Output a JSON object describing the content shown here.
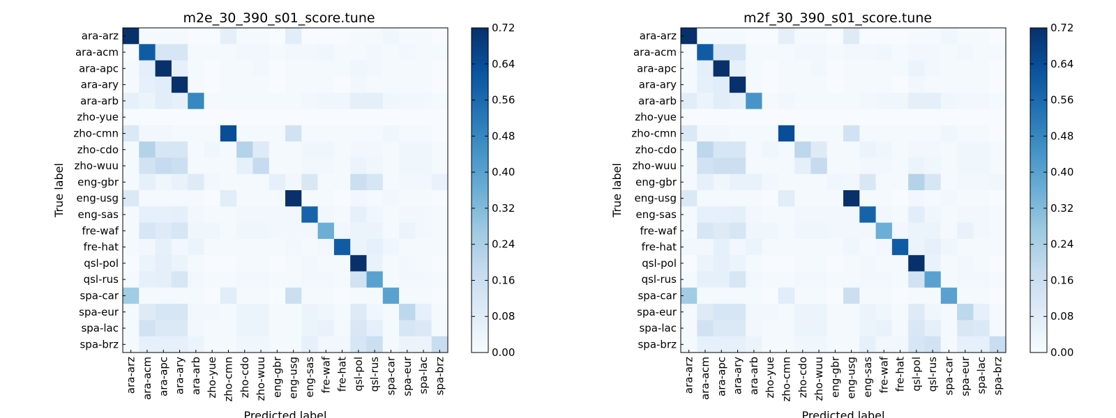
{
  "chart_data": [
    {
      "type": "heatmap",
      "title": "m2e_30_390_s01_score.tune",
      "xlabel": "Predicted label",
      "ylabel": "True label",
      "colormap": "Blues",
      "vmin": 0.0,
      "vmax": 0.72,
      "colorbar_ticks": [
        "0.00",
        "0.08",
        "0.16",
        "0.24",
        "0.32",
        "0.40",
        "0.48",
        "0.56",
        "0.64",
        "0.72"
      ],
      "labels": [
        "ara-arz",
        "ara-acm",
        "ara-apc",
        "ara-ary",
        "ara-arb",
        "zho-yue",
        "zho-cmn",
        "zho-cdo",
        "zho-wuu",
        "eng-gbr",
        "eng-usg",
        "eng-sas",
        "fre-waf",
        "fre-hat",
        "qsl-pol",
        "qsl-rus",
        "spa-car",
        "spa-eur",
        "spa-lac",
        "spa-brz"
      ],
      "matrix": [
        [
          0.74,
          0.01,
          0.01,
          0.01,
          0.0,
          0.0,
          0.07,
          0.01,
          0.01,
          0.0,
          0.08,
          0.0,
          0.0,
          0.0,
          0.01,
          0.01,
          0.03,
          0.01,
          0.01,
          0.0
        ],
        [
          0.0,
          0.6,
          0.12,
          0.12,
          0.01,
          0.01,
          0.01,
          0.02,
          0.02,
          0.01,
          0.02,
          0.02,
          0.03,
          0.01,
          0.01,
          0.02,
          0.01,
          0.02,
          0.01,
          0.01
        ],
        [
          0.01,
          0.07,
          0.72,
          0.06,
          0.01,
          0.0,
          0.01,
          0.01,
          0.02,
          0.0,
          0.01,
          0.01,
          0.01,
          0.01,
          0.03,
          0.02,
          0.01,
          0.01,
          0.01,
          0.0
        ],
        [
          0.01,
          0.06,
          0.08,
          0.74,
          0.01,
          0.0,
          0.01,
          0.01,
          0.01,
          0.0,
          0.01,
          0.01,
          0.01,
          0.0,
          0.02,
          0.01,
          0.01,
          0.01,
          0.01,
          0.0
        ],
        [
          0.06,
          0.04,
          0.08,
          0.06,
          0.48,
          0.01,
          0.01,
          0.01,
          0.01,
          0.01,
          0.01,
          0.02,
          0.03,
          0.03,
          0.07,
          0.07,
          0.03,
          0.02,
          0.02,
          0.01
        ],
        [
          0.0,
          0.0,
          0.0,
          0.0,
          0.0,
          0.0,
          0.0,
          0.0,
          0.0,
          0.0,
          0.0,
          0.0,
          0.0,
          0.0,
          0.0,
          0.0,
          0.0,
          0.0,
          0.0,
          0.0
        ],
        [
          0.1,
          0.02,
          0.02,
          0.01,
          0.01,
          0.01,
          0.64,
          0.01,
          0.01,
          0.01,
          0.14,
          0.01,
          0.01,
          0.01,
          0.01,
          0.01,
          0.03,
          0.01,
          0.01,
          0.0
        ],
        [
          0.01,
          0.22,
          0.12,
          0.12,
          0.01,
          0.03,
          0.01,
          0.22,
          0.09,
          0.01,
          0.01,
          0.03,
          0.03,
          0.01,
          0.02,
          0.02,
          0.01,
          0.03,
          0.03,
          0.01
        ],
        [
          0.01,
          0.14,
          0.18,
          0.16,
          0.01,
          0.01,
          0.01,
          0.06,
          0.18,
          0.01,
          0.01,
          0.02,
          0.02,
          0.01,
          0.04,
          0.03,
          0.01,
          0.03,
          0.03,
          0.01
        ],
        [
          0.01,
          0.06,
          0.03,
          0.05,
          0.09,
          0.02,
          0.01,
          0.01,
          0.01,
          0.06,
          0.02,
          0.11,
          0.01,
          0.01,
          0.16,
          0.12,
          0.01,
          0.02,
          0.02,
          0.05
        ],
        [
          0.1,
          0.01,
          0.01,
          0.01,
          0.01,
          0.0,
          0.08,
          0.01,
          0.01,
          0.01,
          0.76,
          0.01,
          0.01,
          0.0,
          0.02,
          0.01,
          0.02,
          0.01,
          0.01,
          0.0
        ],
        [
          0.01,
          0.06,
          0.06,
          0.07,
          0.02,
          0.01,
          0.01,
          0.02,
          0.02,
          0.02,
          0.02,
          0.58,
          0.02,
          0.01,
          0.06,
          0.03,
          0.01,
          0.02,
          0.02,
          0.01
        ],
        [
          0.01,
          0.12,
          0.09,
          0.12,
          0.03,
          0.03,
          0.01,
          0.03,
          0.03,
          0.02,
          0.02,
          0.02,
          0.36,
          0.02,
          0.04,
          0.04,
          0.01,
          0.04,
          0.02,
          0.01
        ],
        [
          0.01,
          0.02,
          0.06,
          0.02,
          0.04,
          0.01,
          0.01,
          0.01,
          0.01,
          0.01,
          0.02,
          0.01,
          0.02,
          0.6,
          0.04,
          0.06,
          0.03,
          0.01,
          0.01,
          0.01
        ],
        [
          0.0,
          0.04,
          0.07,
          0.04,
          0.01,
          0.0,
          0.0,
          0.01,
          0.01,
          0.0,
          0.01,
          0.02,
          0.01,
          0.01,
          0.74,
          0.05,
          0.01,
          0.02,
          0.01,
          0.0
        ],
        [
          0.01,
          0.06,
          0.07,
          0.12,
          0.02,
          0.01,
          0.01,
          0.02,
          0.02,
          0.01,
          0.01,
          0.02,
          0.02,
          0.01,
          0.14,
          0.4,
          0.01,
          0.02,
          0.02,
          0.01
        ],
        [
          0.26,
          0.01,
          0.01,
          0.01,
          0.01,
          0.0,
          0.08,
          0.01,
          0.01,
          0.0,
          0.16,
          0.01,
          0.01,
          0.0,
          0.01,
          0.01,
          0.4,
          0.01,
          0.01,
          0.0
        ],
        [
          0.01,
          0.09,
          0.12,
          0.12,
          0.02,
          0.02,
          0.01,
          0.04,
          0.04,
          0.01,
          0.01,
          0.04,
          0.03,
          0.01,
          0.09,
          0.03,
          0.01,
          0.2,
          0.06,
          0.01
        ],
        [
          0.01,
          0.14,
          0.1,
          0.1,
          0.02,
          0.01,
          0.01,
          0.04,
          0.04,
          0.01,
          0.01,
          0.04,
          0.05,
          0.01,
          0.11,
          0.07,
          0.01,
          0.12,
          0.1,
          0.01
        ],
        [
          0.01,
          0.06,
          0.06,
          0.06,
          0.04,
          0.01,
          0.01,
          0.03,
          0.03,
          0.01,
          0.01,
          0.06,
          0.02,
          0.02,
          0.12,
          0.16,
          0.01,
          0.04,
          0.04,
          0.17
        ]
      ]
    },
    {
      "type": "heatmap",
      "title": "m2f_30_390_s01_score.tune",
      "xlabel": "Predicted label",
      "ylabel": "True label",
      "colormap": "Blues",
      "vmin": 0.0,
      "vmax": 0.72,
      "colorbar_ticks": [
        "0.00",
        "0.08",
        "0.16",
        "0.24",
        "0.32",
        "0.40",
        "0.48",
        "0.56",
        "0.64",
        "0.72"
      ],
      "labels": [
        "ara-arz",
        "ara-acm",
        "ara-apc",
        "ara-ary",
        "ara-arb",
        "zho-yue",
        "zho-cmn",
        "zho-cdo",
        "zho-wuu",
        "eng-gbr",
        "eng-usg",
        "eng-sas",
        "fre-waf",
        "fre-hat",
        "qsl-pol",
        "qsl-rus",
        "spa-car",
        "spa-eur",
        "spa-lac",
        "spa-brz"
      ],
      "matrix": [
        [
          0.74,
          0.01,
          0.01,
          0.01,
          0.0,
          0.0,
          0.07,
          0.01,
          0.01,
          0.0,
          0.09,
          0.0,
          0.0,
          0.0,
          0.01,
          0.01,
          0.03,
          0.01,
          0.01,
          0.0
        ],
        [
          0.0,
          0.6,
          0.12,
          0.12,
          0.01,
          0.01,
          0.01,
          0.02,
          0.02,
          0.01,
          0.02,
          0.02,
          0.03,
          0.01,
          0.02,
          0.02,
          0.01,
          0.02,
          0.01,
          0.01
        ],
        [
          0.01,
          0.07,
          0.72,
          0.06,
          0.01,
          0.0,
          0.01,
          0.01,
          0.02,
          0.0,
          0.01,
          0.01,
          0.01,
          0.01,
          0.04,
          0.02,
          0.01,
          0.01,
          0.01,
          0.0
        ],
        [
          0.01,
          0.06,
          0.08,
          0.74,
          0.01,
          0.0,
          0.01,
          0.01,
          0.01,
          0.0,
          0.01,
          0.01,
          0.01,
          0.0,
          0.02,
          0.01,
          0.01,
          0.01,
          0.01,
          0.0
        ],
        [
          0.08,
          0.04,
          0.08,
          0.06,
          0.44,
          0.01,
          0.02,
          0.01,
          0.01,
          0.01,
          0.01,
          0.02,
          0.03,
          0.03,
          0.07,
          0.07,
          0.03,
          0.02,
          0.02,
          0.01
        ],
        [
          0.0,
          0.0,
          0.0,
          0.0,
          0.0,
          0.0,
          0.0,
          0.0,
          0.0,
          0.0,
          0.0,
          0.0,
          0.0,
          0.0,
          0.0,
          0.0,
          0.0,
          0.0,
          0.0,
          0.0
        ],
        [
          0.1,
          0.02,
          0.02,
          0.01,
          0.01,
          0.01,
          0.64,
          0.01,
          0.01,
          0.01,
          0.14,
          0.01,
          0.01,
          0.01,
          0.01,
          0.01,
          0.03,
          0.01,
          0.01,
          0.0
        ],
        [
          0.01,
          0.2,
          0.12,
          0.12,
          0.01,
          0.03,
          0.01,
          0.2,
          0.09,
          0.01,
          0.01,
          0.04,
          0.03,
          0.01,
          0.02,
          0.02,
          0.01,
          0.03,
          0.03,
          0.01
        ],
        [
          0.01,
          0.14,
          0.16,
          0.16,
          0.01,
          0.01,
          0.01,
          0.07,
          0.18,
          0.01,
          0.01,
          0.02,
          0.02,
          0.01,
          0.04,
          0.03,
          0.01,
          0.03,
          0.03,
          0.01
        ],
        [
          0.01,
          0.06,
          0.03,
          0.05,
          0.05,
          0.02,
          0.01,
          0.01,
          0.01,
          0.03,
          0.02,
          0.11,
          0.01,
          0.01,
          0.22,
          0.12,
          0.01,
          0.02,
          0.02,
          0.03
        ],
        [
          0.1,
          0.01,
          0.01,
          0.01,
          0.01,
          0.0,
          0.08,
          0.01,
          0.01,
          0.01,
          0.76,
          0.01,
          0.01,
          0.0,
          0.02,
          0.01,
          0.02,
          0.01,
          0.01,
          0.0
        ],
        [
          0.01,
          0.06,
          0.06,
          0.07,
          0.02,
          0.01,
          0.01,
          0.02,
          0.02,
          0.02,
          0.02,
          0.58,
          0.02,
          0.01,
          0.08,
          0.03,
          0.01,
          0.02,
          0.02,
          0.01
        ],
        [
          0.01,
          0.12,
          0.09,
          0.12,
          0.03,
          0.03,
          0.01,
          0.03,
          0.03,
          0.02,
          0.02,
          0.02,
          0.36,
          0.02,
          0.04,
          0.04,
          0.01,
          0.05,
          0.02,
          0.01
        ],
        [
          0.02,
          0.02,
          0.06,
          0.02,
          0.04,
          0.01,
          0.01,
          0.01,
          0.01,
          0.01,
          0.03,
          0.01,
          0.02,
          0.6,
          0.04,
          0.06,
          0.03,
          0.01,
          0.01,
          0.01
        ],
        [
          0.0,
          0.04,
          0.06,
          0.04,
          0.01,
          0.0,
          0.0,
          0.01,
          0.01,
          0.0,
          0.01,
          0.02,
          0.01,
          0.01,
          0.74,
          0.05,
          0.01,
          0.02,
          0.01,
          0.0
        ],
        [
          0.01,
          0.06,
          0.06,
          0.12,
          0.02,
          0.01,
          0.01,
          0.02,
          0.02,
          0.01,
          0.01,
          0.02,
          0.02,
          0.01,
          0.14,
          0.4,
          0.01,
          0.02,
          0.02,
          0.01
        ],
        [
          0.26,
          0.01,
          0.01,
          0.01,
          0.01,
          0.0,
          0.08,
          0.01,
          0.01,
          0.0,
          0.16,
          0.01,
          0.01,
          0.0,
          0.01,
          0.01,
          0.4,
          0.01,
          0.01,
          0.0
        ],
        [
          0.01,
          0.09,
          0.12,
          0.12,
          0.02,
          0.02,
          0.01,
          0.04,
          0.04,
          0.01,
          0.01,
          0.04,
          0.03,
          0.01,
          0.09,
          0.03,
          0.01,
          0.2,
          0.06,
          0.01
        ],
        [
          0.01,
          0.14,
          0.1,
          0.1,
          0.02,
          0.01,
          0.01,
          0.04,
          0.04,
          0.01,
          0.01,
          0.04,
          0.05,
          0.01,
          0.11,
          0.07,
          0.01,
          0.11,
          0.1,
          0.01
        ],
        [
          0.01,
          0.06,
          0.06,
          0.06,
          0.04,
          0.01,
          0.01,
          0.03,
          0.03,
          0.01,
          0.01,
          0.06,
          0.02,
          0.02,
          0.12,
          0.14,
          0.01,
          0.06,
          0.06,
          0.17
        ]
      ]
    }
  ]
}
